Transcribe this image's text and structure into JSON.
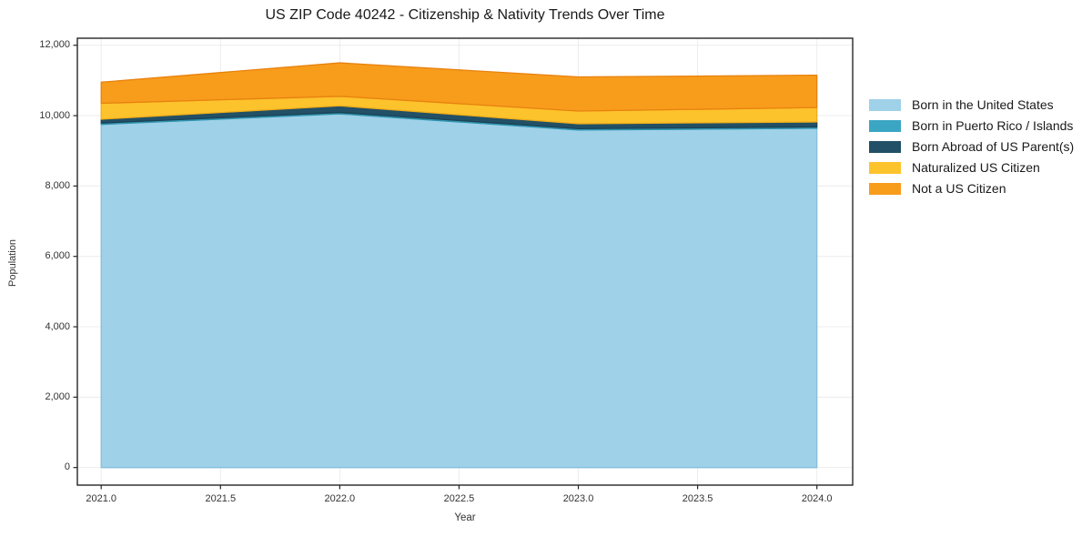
{
  "title": "US ZIP Code 40242 - Citizenship & Nativity Trends Over Time",
  "chart_data": {
    "type": "area",
    "stacked": true,
    "title": "US ZIP Code 40242 - Citizenship & Nativity Trends Over Time",
    "xlabel": "Year",
    "ylabel": "Population",
    "x": [
      2021,
      2022,
      2023,
      2024
    ],
    "series": [
      {
        "name": "Born in the United States",
        "color": "#9FD1E8",
        "edge": "#85BFDB",
        "values": [
          9750,
          10050,
          9590,
          9640
        ]
      },
      {
        "name": "Born in Puerto Rico / Islands",
        "color": "#3BA6C3",
        "edge": "#2F93B0",
        "values": [
          40,
          40,
          40,
          40
        ]
      },
      {
        "name": "Born Abroad of US Parent(s)",
        "color": "#225066",
        "edge": "#1B4254",
        "values": [
          110,
          190,
          140,
          140
        ]
      },
      {
        "name": "Naturalized US Citizen",
        "color": "#FCC32C",
        "edge": "#F0AD1A",
        "values": [
          450,
          270,
          360,
          410
        ]
      },
      {
        "name": "Not a US Citizen",
        "color": "#F89C1C",
        "edge": "#E8820E",
        "values": [
          600,
          950,
          970,
          920
        ]
      }
    ],
    "xlim": [
      2020.9,
      2024.15
    ],
    "ylim": [
      -500,
      12200
    ],
    "x_ticks": [
      {
        "v": 2021,
        "label": "2021.0"
      },
      {
        "v": 2021.5,
        "label": "2021.5"
      },
      {
        "v": 2022,
        "label": "2022.0"
      },
      {
        "v": 2022.5,
        "label": "2022.5"
      },
      {
        "v": 2023,
        "label": "2023.0"
      },
      {
        "v": 2023.5,
        "label": "2023.5"
      },
      {
        "v": 2024,
        "label": "2024.0"
      }
    ],
    "y_ticks": [
      {
        "v": 0,
        "label": "0"
      },
      {
        "v": 2000,
        "label": "2,000"
      },
      {
        "v": 4000,
        "label": "4,000"
      },
      {
        "v": 6000,
        "label": "6,000"
      },
      {
        "v": 8000,
        "label": "8,000"
      },
      {
        "v": 10000,
        "label": "10,000"
      },
      {
        "v": 12000,
        "label": "12,000"
      }
    ],
    "grid": true,
    "grid_color": "#ececec",
    "spine_color": "#262626",
    "legend_position": "right-outside"
  }
}
